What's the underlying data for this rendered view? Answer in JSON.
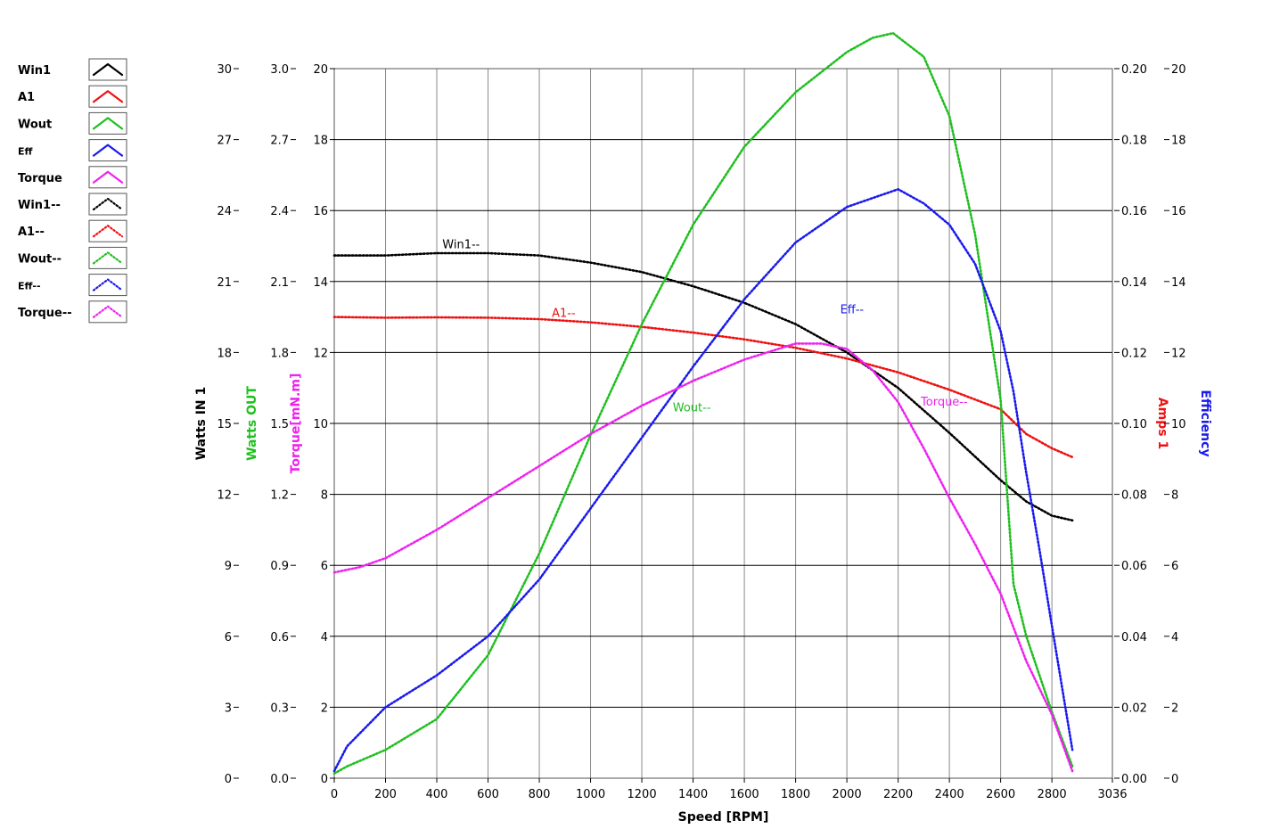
{
  "chart_data": {
    "type": "line",
    "xlabel": "Speed [RPM]",
    "xlim": [
      0,
      3036
    ],
    "x_ticks": [
      "0",
      "200",
      "400",
      "600",
      "800",
      "1000",
      "1200",
      "1400",
      "1600",
      "1800",
      "2000",
      "2200",
      "2400",
      "2600",
      "2800",
      "3036"
    ],
    "axes": {
      "watts_in": {
        "label": "Watts IN 1",
        "color": "#000000",
        "ylim": [
          0,
          30
        ],
        "ticks": [
          "0",
          "3",
          "6",
          "9",
          "12",
          "15",
          "18",
          "21",
          "24",
          "27",
          "30"
        ]
      },
      "watts_out": {
        "label": "Watts OUT",
        "color": "#1fbf1f",
        "ylim": [
          0,
          3
        ],
        "ticks": [
          "0.0",
          "0.3",
          "0.6",
          "0.9",
          "1.2",
          "1.5",
          "1.8",
          "2.1",
          "2.4",
          "2.7",
          "3.0"
        ]
      },
      "torque": {
        "label": "Torque[mN.m]",
        "color": "#ee22ee",
        "ylim": [
          0,
          20
        ],
        "ticks": [
          "0",
          "2",
          "4",
          "6",
          "8",
          "10",
          "12",
          "14",
          "16",
          "18",
          "20"
        ]
      },
      "amps": {
        "label": "Amps 1",
        "color": "#ee1111",
        "ylim": [
          0,
          0.2
        ],
        "ticks": [
          "0.00",
          "0.02",
          "0.04",
          "0.06",
          "0.08",
          "0.10",
          "0.12",
          "0.14",
          "0.16",
          "0.18",
          "0.20"
        ]
      },
      "efficiency": {
        "label": "Efficiency",
        "color": "#1a1aee",
        "ylim": [
          0,
          20
        ],
        "ticks": [
          "0",
          "2",
          "4",
          "6",
          "8",
          "10",
          "12",
          "14",
          "16",
          "18",
          "20"
        ]
      }
    },
    "legend": [
      {
        "label": "Win1",
        "color": "#000000",
        "style": "solid"
      },
      {
        "label": "A1",
        "color": "#ee1111",
        "style": "solid"
      },
      {
        "label": "Wout",
        "color": "#1fbf1f",
        "style": "solid"
      },
      {
        "label": "Eff",
        "color": "#1a1aee",
        "style": "solid"
      },
      {
        "label": "Torque",
        "color": "#ee22ee",
        "style": "solid"
      },
      {
        "label": "Win1--",
        "color": "#000000",
        "style": "dotted"
      },
      {
        "label": "A1--",
        "color": "#ee1111",
        "style": "dotted"
      },
      {
        "label": "Wout--",
        "color": "#1fbf1f",
        "style": "dotted"
      },
      {
        "label": "Eff--",
        "color": "#1a1aee",
        "style": "dotted"
      },
      {
        "label": "Torque--",
        "color": "#ee22ee",
        "style": "dotted"
      }
    ],
    "series": [
      {
        "name": "Win1--",
        "axis": "watts_in",
        "color": "#000000",
        "x": [
          0,
          200,
          400,
          600,
          800,
          1000,
          1200,
          1400,
          1600,
          1800,
          2000,
          2200,
          2400,
          2600,
          2700,
          2800,
          2880
        ],
        "y": [
          22.1,
          22.1,
          22.2,
          22.2,
          22.1,
          21.8,
          21.4,
          20.8,
          20.1,
          19.2,
          18.0,
          16.5,
          14.6,
          12.6,
          11.7,
          11.1,
          10.9
        ]
      },
      {
        "name": "A1--",
        "axis": "amps",
        "color": "#ee1111",
        "x": [
          0,
          200,
          400,
          600,
          800,
          1000,
          1200,
          1400,
          1600,
          1800,
          2000,
          2200,
          2400,
          2600,
          2700,
          2800,
          2880
        ],
        "y": [
          0.13,
          0.1298,
          0.1299,
          0.1298,
          0.1294,
          0.1285,
          0.1272,
          0.1256,
          0.1237,
          0.1213,
          0.1183,
          0.1144,
          0.1095,
          0.104,
          0.097,
          0.093,
          0.0905
        ]
      },
      {
        "name": "Wout--",
        "axis": "watts_out",
        "color": "#1fbf1f",
        "x": [
          0,
          50,
          200,
          400,
          600,
          800,
          1000,
          1200,
          1400,
          1600,
          1800,
          2000,
          2100,
          2180,
          2300,
          2400,
          2500,
          2600,
          2650,
          2700,
          2800,
          2880
        ],
        "y": [
          0.02,
          0.05,
          0.12,
          0.25,
          0.52,
          0.95,
          1.45,
          1.92,
          2.34,
          2.67,
          2.9,
          3.07,
          3.13,
          3.15,
          3.05,
          2.8,
          2.3,
          1.6,
          0.82,
          0.6,
          0.28,
          0.05
        ]
      },
      {
        "name": "Eff--",
        "axis": "efficiency",
        "color": "#1a1aee",
        "x": [
          0,
          50,
          200,
          400,
          600,
          800,
          1000,
          1200,
          1400,
          1600,
          1800,
          2000,
          2200,
          2300,
          2400,
          2500,
          2600,
          2650,
          2700,
          2750,
          2800,
          2880
        ],
        "y": [
          0.2,
          0.9,
          2.0,
          2.9,
          4.0,
          5.6,
          7.6,
          9.6,
          11.6,
          13.5,
          15.1,
          16.1,
          16.6,
          16.2,
          15.6,
          14.5,
          12.6,
          10.9,
          8.6,
          6.5,
          4.3,
          0.8
        ]
      },
      {
        "name": "Torque--",
        "axis": "torque",
        "color": "#ee22ee",
        "x": [
          0,
          100,
          200,
          400,
          600,
          800,
          1000,
          1200,
          1400,
          1600,
          1800,
          1900,
          2000,
          2100,
          2200,
          2300,
          2400,
          2500,
          2600,
          2700,
          2800,
          2880
        ],
        "y": [
          5.8,
          5.95,
          6.2,
          7.0,
          7.9,
          8.8,
          9.7,
          10.5,
          11.2,
          11.8,
          12.25,
          12.25,
          12.1,
          11.5,
          10.6,
          9.3,
          7.9,
          6.6,
          5.2,
          3.3,
          1.8,
          0.2
        ]
      }
    ],
    "series_labels": [
      {
        "text": "Win1--",
        "color": "#000000",
        "axis": "watts_in",
        "x": 495,
        "y": 22.4
      },
      {
        "text": "A1--",
        "color": "#ee1111",
        "axis": "amps",
        "x": 895,
        "y": 0.13
      },
      {
        "text": "Wout--",
        "color": "#1fbf1f",
        "axis": "watts_out",
        "x": 1395,
        "y": 1.55
      },
      {
        "text": "Eff--",
        "color": "#1a1aee",
        "axis": "efficiency",
        "x": 2020,
        "y": 13.1
      },
      {
        "text": "Torque--",
        "color": "#ee22ee",
        "axis": "torque",
        "x": 2380,
        "y": 10.5
      }
    ],
    "grid": true
  }
}
